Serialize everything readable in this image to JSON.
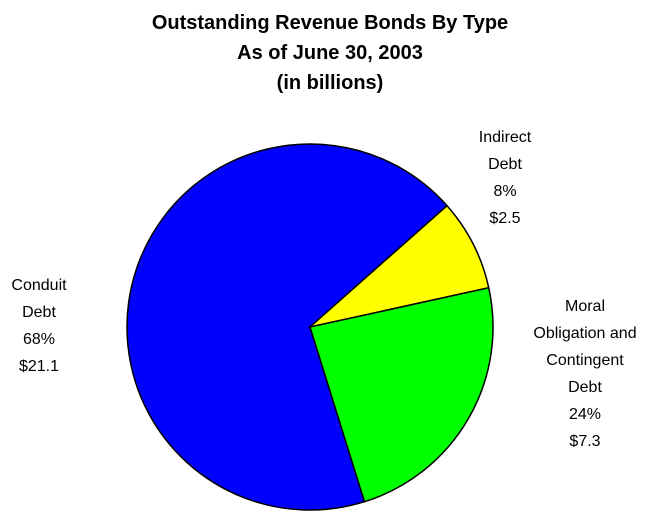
{
  "chart_data": {
    "type": "pie",
    "title": [
      "Outstanding Revenue Bonds By Type",
      "As of June 30, 2003",
      "(in billions)"
    ],
    "slices": [
      {
        "name": [
          "Conduit",
          "Debt"
        ],
        "percent_label": "68%",
        "value_label": "$21.1",
        "value": 21.1,
        "color": "#0000FF"
      },
      {
        "name": [
          "Indirect",
          "Debt"
        ],
        "percent_label": "8%",
        "value_label": "$2.5",
        "value": 2.5,
        "color": "#FFFF00"
      },
      {
        "name": [
          "Moral",
          "Obligation and",
          "Contingent",
          "Debt"
        ],
        "percent_label": "24%",
        "value_label": "$7.3",
        "value": 7.3,
        "color": "#00FF00"
      }
    ],
    "border_color": "#000000"
  }
}
